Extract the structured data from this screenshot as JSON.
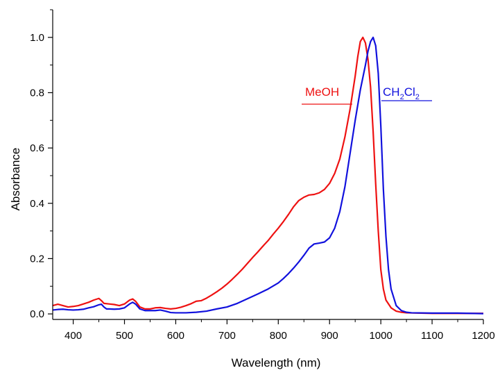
{
  "chart_data": {
    "type": "line",
    "xlabel": "Wavelength (nm)",
    "ylabel": "Absorbance",
    "xlim": [
      360,
      1200
    ],
    "ylim": [
      -0.02,
      1.1
    ],
    "xticks": [
      400,
      500,
      600,
      700,
      800,
      900,
      1000,
      1100,
      1200
    ],
    "xtick_labels": [
      "400",
      "500",
      "600",
      "700",
      "800",
      "900",
      "1000",
      "1100",
      "1200"
    ],
    "yticks": [
      0.0,
      0.2,
      0.4,
      0.6,
      0.8,
      1.0
    ],
    "ytick_labels": [
      "0.0",
      "0.2",
      "0.4",
      "0.6",
      "0.8",
      "1.0"
    ],
    "grid": false,
    "legend_placement": "top-right",
    "series": [
      {
        "name": "MeOH",
        "color": "#ee1111",
        "points": [
          [
            360,
            0.03
          ],
          [
            370,
            0.035
          ],
          [
            380,
            0.03
          ],
          [
            390,
            0.025
          ],
          [
            400,
            0.027
          ],
          [
            410,
            0.03
          ],
          [
            420,
            0.036
          ],
          [
            430,
            0.042
          ],
          [
            440,
            0.05
          ],
          [
            450,
            0.056
          ],
          [
            455,
            0.048
          ],
          [
            460,
            0.038
          ],
          [
            470,
            0.036
          ],
          [
            480,
            0.034
          ],
          [
            490,
            0.03
          ],
          [
            500,
            0.036
          ],
          [
            510,
            0.05
          ],
          [
            516,
            0.054
          ],
          [
            522,
            0.045
          ],
          [
            530,
            0.025
          ],
          [
            540,
            0.018
          ],
          [
            550,
            0.018
          ],
          [
            560,
            0.022
          ],
          [
            570,
            0.023
          ],
          [
            580,
            0.02
          ],
          [
            590,
            0.018
          ],
          [
            600,
            0.02
          ],
          [
            610,
            0.024
          ],
          [
            620,
            0.03
          ],
          [
            630,
            0.037
          ],
          [
            640,
            0.046
          ],
          [
            650,
            0.048
          ],
          [
            660,
            0.057
          ],
          [
            670,
            0.068
          ],
          [
            680,
            0.08
          ],
          [
            690,
            0.093
          ],
          [
            700,
            0.108
          ],
          [
            710,
            0.125
          ],
          [
            720,
            0.143
          ],
          [
            730,
            0.162
          ],
          [
            740,
            0.183
          ],
          [
            750,
            0.204
          ],
          [
            760,
            0.224
          ],
          [
            770,
            0.245
          ],
          [
            780,
            0.265
          ],
          [
            790,
            0.288
          ],
          [
            800,
            0.31
          ],
          [
            810,
            0.334
          ],
          [
            820,
            0.36
          ],
          [
            830,
            0.388
          ],
          [
            840,
            0.41
          ],
          [
            850,
            0.422
          ],
          [
            860,
            0.43
          ],
          [
            870,
            0.432
          ],
          [
            880,
            0.438
          ],
          [
            890,
            0.45
          ],
          [
            900,
            0.472
          ],
          [
            910,
            0.508
          ],
          [
            920,
            0.56
          ],
          [
            930,
            0.64
          ],
          [
            940,
            0.74
          ],
          [
            950,
            0.86
          ],
          [
            955,
            0.93
          ],
          [
            960,
            0.985
          ],
          [
            965,
            1.0
          ],
          [
            970,
            0.98
          ],
          [
            975,
            0.92
          ],
          [
            980,
            0.82
          ],
          [
            985,
            0.66
          ],
          [
            990,
            0.47
          ],
          [
            995,
            0.3
          ],
          [
            1000,
            0.16
          ],
          [
            1005,
            0.09
          ],
          [
            1010,
            0.05
          ],
          [
            1020,
            0.022
          ],
          [
            1030,
            0.01
          ],
          [
            1040,
            0.006
          ],
          [
            1050,
            0.004
          ],
          [
            1100,
            0.002
          ],
          [
            1150,
            0.002
          ],
          [
            1200,
            0.002
          ]
        ]
      },
      {
        "name": "CH2Cl2",
        "color": "#1111dd",
        "points": [
          [
            360,
            0.014
          ],
          [
            370,
            0.016
          ],
          [
            380,
            0.017
          ],
          [
            390,
            0.015
          ],
          [
            400,
            0.014
          ],
          [
            410,
            0.015
          ],
          [
            420,
            0.017
          ],
          [
            430,
            0.022
          ],
          [
            440,
            0.026
          ],
          [
            450,
            0.033
          ],
          [
            455,
            0.035
          ],
          [
            460,
            0.025
          ],
          [
            465,
            0.018
          ],
          [
            470,
            0.018
          ],
          [
            480,
            0.017
          ],
          [
            490,
            0.018
          ],
          [
            500,
            0.022
          ],
          [
            510,
            0.036
          ],
          [
            516,
            0.042
          ],
          [
            522,
            0.035
          ],
          [
            530,
            0.018
          ],
          [
            540,
            0.012
          ],
          [
            550,
            0.012
          ],
          [
            560,
            0.012
          ],
          [
            570,
            0.014
          ],
          [
            580,
            0.01
          ],
          [
            590,
            0.005
          ],
          [
            600,
            0.004
          ],
          [
            620,
            0.004
          ],
          [
            640,
            0.006
          ],
          [
            660,
            0.01
          ],
          [
            680,
            0.018
          ],
          [
            700,
            0.025
          ],
          [
            720,
            0.038
          ],
          [
            740,
            0.055
          ],
          [
            760,
            0.072
          ],
          [
            780,
            0.09
          ],
          [
            800,
            0.112
          ],
          [
            810,
            0.128
          ],
          [
            820,
            0.146
          ],
          [
            830,
            0.166
          ],
          [
            840,
            0.188
          ],
          [
            850,
            0.212
          ],
          [
            860,
            0.238
          ],
          [
            870,
            0.253
          ],
          [
            880,
            0.256
          ],
          [
            890,
            0.26
          ],
          [
            900,
            0.275
          ],
          [
            910,
            0.31
          ],
          [
            920,
            0.37
          ],
          [
            930,
            0.46
          ],
          [
            940,
            0.58
          ],
          [
            950,
            0.7
          ],
          [
            960,
            0.81
          ],
          [
            970,
            0.9
          ],
          [
            975,
            0.95
          ],
          [
            980,
            0.985
          ],
          [
            985,
            1.0
          ],
          [
            990,
            0.97
          ],
          [
            995,
            0.87
          ],
          [
            1000,
            0.68
          ],
          [
            1005,
            0.45
          ],
          [
            1010,
            0.28
          ],
          [
            1015,
            0.16
          ],
          [
            1020,
            0.09
          ],
          [
            1030,
            0.03
          ],
          [
            1040,
            0.012
          ],
          [
            1050,
            0.006
          ],
          [
            1060,
            0.004
          ],
          [
            1100,
            0.003
          ],
          [
            1150,
            0.003
          ],
          [
            1200,
            0.001
          ]
        ]
      }
    ],
    "legend": {
      "meoh_label": "MeOH",
      "ch2cl2_parts": [
        "CH",
        "2",
        "Cl",
        "2"
      ]
    }
  }
}
